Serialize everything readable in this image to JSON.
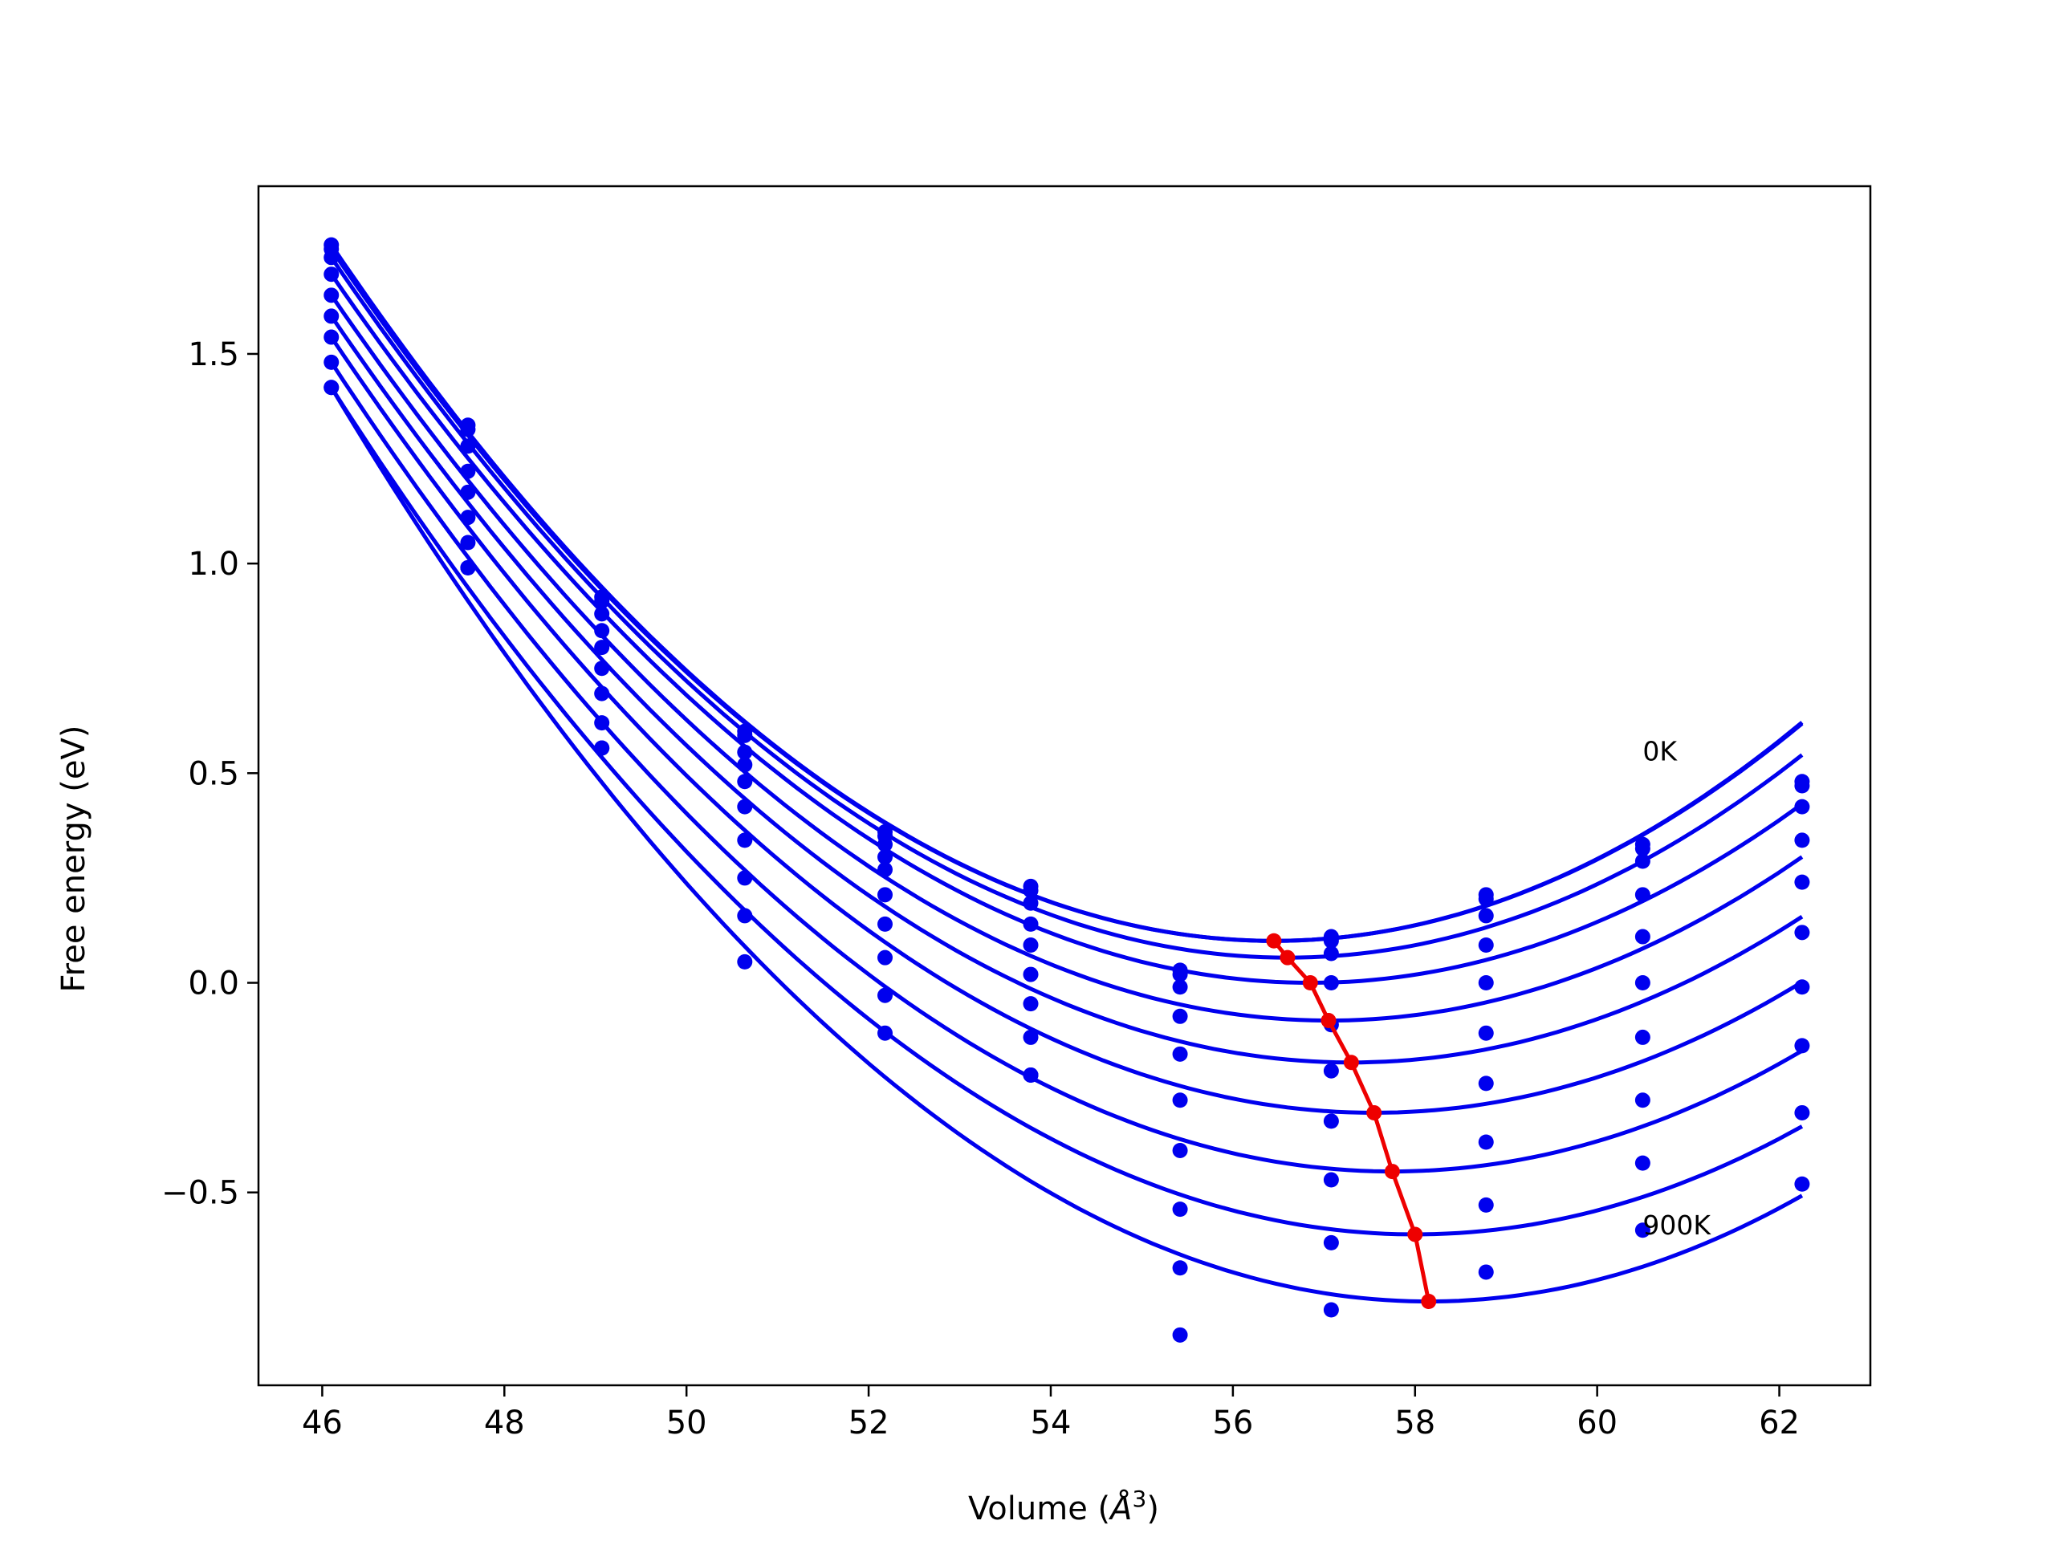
{
  "chart_data": {
    "type": "line",
    "xlabel": "Volume (Å3)",
    "xlabel_main": "Volume (",
    "xlabel_unit": "Å",
    "xlabel_sup": "3",
    "xlabel_end": ")",
    "ylabel": "Free energy (eV)",
    "xlim": [
      45.3,
      63.0
    ],
    "ylim": [
      -0.96,
      1.9
    ],
    "xticks": [
      46,
      48,
      50,
      52,
      54,
      56,
      58,
      60,
      62
    ],
    "xtick_labels": [
      "46",
      "48",
      "50",
      "52",
      "54",
      "56",
      "58",
      "60",
      "62"
    ],
    "yticks": [
      1.5,
      1.0,
      0.5,
      0.0,
      -0.5
    ],
    "ytick_labels": [
      "1.5",
      "1.0",
      "0.5",
      "0.0",
      "−0.5"
    ],
    "annotations": [
      {
        "text": "0K",
        "x": 60.5,
        "y": 0.53
      },
      {
        "text": "900K",
        "x": 60.5,
        "y": -0.6
      }
    ],
    "colors": {
      "curves": "#0000ee",
      "minimum_path": "#ee0000"
    },
    "curve_x_range": [
      46.1,
      62.25
    ],
    "volumes": [
      46.1,
      47.6,
      49.07,
      50.64,
      52.18,
      53.78,
      55.42,
      57.08,
      58.78,
      60.5,
      62.25
    ],
    "series": [
      {
        "min_x": 56.45,
        "min_y": 0.1,
        "points": [
          1.76,
          1.33,
          0.92,
          0.6,
          0.36,
          0.23,
          0.03,
          0.11,
          0.21,
          0.33,
          0.48
        ]
      },
      {
        "min_x": 56.45,
        "min_y": 0.1,
        "points": [
          1.75,
          1.32,
          0.91,
          0.59,
          0.35,
          0.22,
          0.02,
          0.1,
          0.2,
          0.32,
          0.47
        ]
      },
      {
        "min_x": 56.6,
        "min_y": 0.06,
        "points": [
          1.73,
          1.28,
          0.88,
          0.55,
          0.33,
          0.19,
          -0.01,
          0.07,
          0.16,
          0.29,
          0.42
        ]
      },
      {
        "min_x": 56.85,
        "min_y": 0.0,
        "points": [
          1.69,
          1.22,
          0.84,
          0.52,
          0.3,
          0.14,
          -0.08,
          0.0,
          0.09,
          0.21,
          0.34
        ]
      },
      {
        "min_x": 57.05,
        "min_y": -0.09,
        "points": [
          1.64,
          1.17,
          0.8,
          0.48,
          0.27,
          0.09,
          -0.17,
          -0.1,
          0.0,
          0.11,
          0.24
        ]
      },
      {
        "min_x": 57.3,
        "min_y": -0.19,
        "points": [
          1.59,
          1.11,
          0.75,
          0.42,
          0.21,
          0.02,
          -0.28,
          -0.21,
          -0.12,
          0.0,
          0.12
        ]
      },
      {
        "min_x": 57.55,
        "min_y": -0.31,
        "points": [
          1.54,
          1.05,
          0.69,
          0.34,
          0.14,
          -0.05,
          -0.4,
          -0.33,
          -0.24,
          -0.13,
          -0.01
        ]
      },
      {
        "min_x": 57.75,
        "min_y": -0.45,
        "points": [
          1.48,
          0.99,
          0.62,
          0.25,
          0.06,
          -0.13,
          -0.54,
          -0.47,
          -0.38,
          -0.28,
          -0.15
        ]
      },
      {
        "min_x": 58.0,
        "min_y": -0.6,
        "points": [
          1.42,
          0.99,
          0.56,
          0.16,
          -0.03,
          -0.22,
          -0.68,
          -0.62,
          -0.53,
          -0.43,
          -0.31
        ]
      },
      {
        "min_x": 58.15,
        "min_y": -0.76,
        "points": [
          1.42,
          0.99,
          0.56,
          0.05,
          -0.12,
          -0.22,
          -0.84,
          -0.78,
          -0.69,
          -0.59,
          -0.48
        ]
      }
    ],
    "minimum_path": {
      "x": [
        56.45,
        56.6,
        56.85,
        57.05,
        57.3,
        57.55,
        57.75,
        58.0,
        58.15
      ],
      "y": [
        0.1,
        0.06,
        0.0,
        -0.09,
        -0.19,
        -0.31,
        -0.45,
        -0.6,
        -0.76
      ]
    }
  }
}
